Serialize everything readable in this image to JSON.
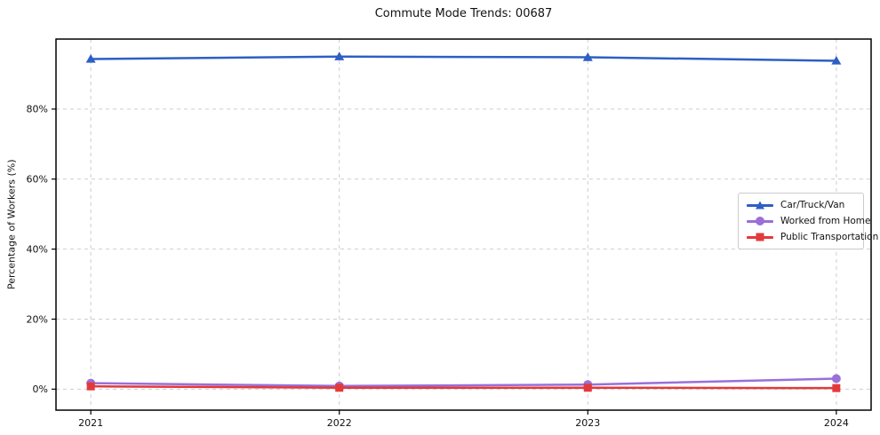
{
  "chart_data": {
    "type": "line",
    "title": "Commute Mode Trends: 00687",
    "xlabel": "",
    "ylabel": "Percentage of Workers (%)",
    "categories": [
      2021,
      2022,
      2023,
      2024
    ],
    "series": [
      {
        "name": "Car/Truck/Van",
        "color": "#2d5fc4",
        "marker": "triangle",
        "values": [
          94.3,
          95.0,
          94.8,
          93.8
        ]
      },
      {
        "name": "Worked from Home",
        "color": "#9a6fd8",
        "marker": "circle",
        "values": [
          1.7,
          0.9,
          1.3,
          3.0
        ]
      },
      {
        "name": "Public Transportation",
        "color": "#e23a3c",
        "marker": "square",
        "values": [
          0.8,
          0.4,
          0.4,
          0.3
        ]
      }
    ],
    "yticks": {
      "values": [
        0,
        20,
        40,
        60,
        80
      ],
      "labels": [
        "0%",
        "20%",
        "40%",
        "60%",
        "80%"
      ]
    },
    "xlim": [
      2020.86,
      2024.14
    ],
    "ylim": [
      -6,
      100
    ],
    "grid": true,
    "grid_style": "dashed",
    "grid_color": "#cdcdcd",
    "spine_color": "#000000",
    "legend_position": "right-center"
  }
}
